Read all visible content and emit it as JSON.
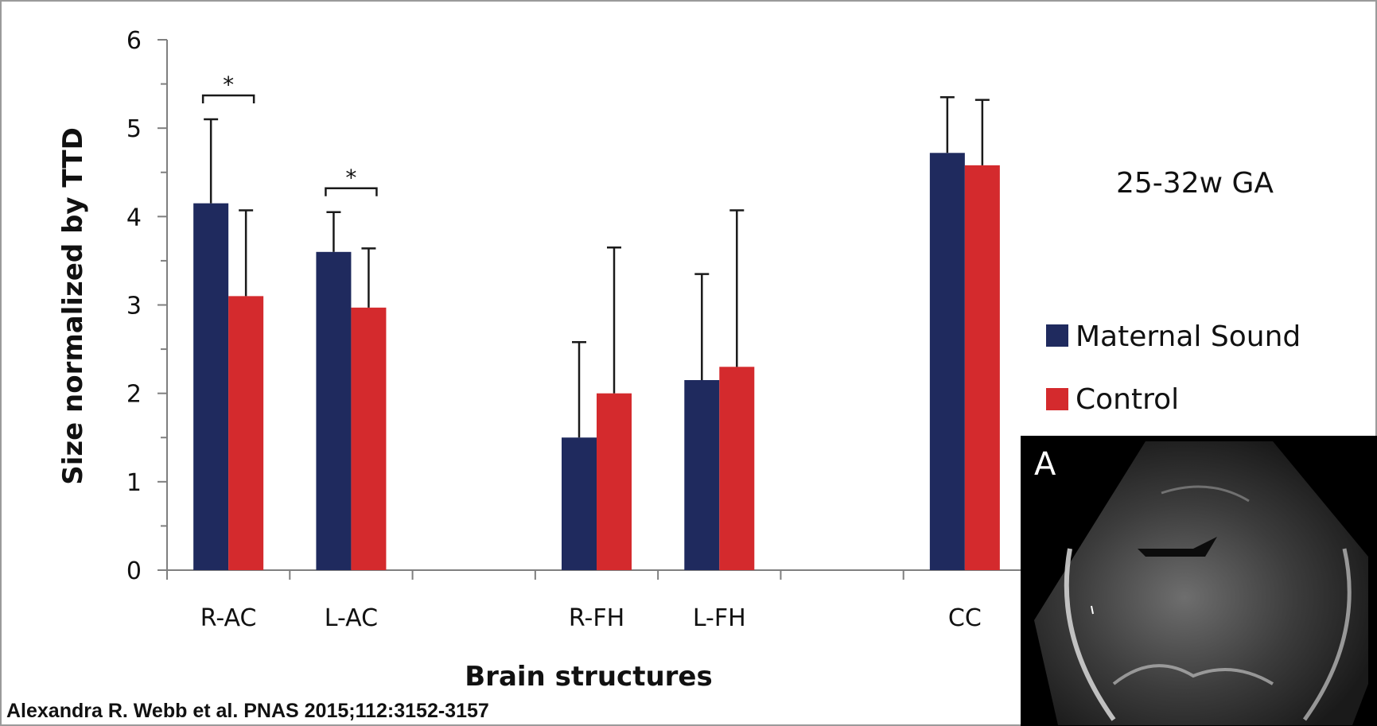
{
  "chart_data": {
    "type": "bar",
    "categories": [
      "R-AC",
      "L-AC",
      "",
      "R-FH",
      "L-FH",
      "",
      "CC"
    ],
    "series": [
      {
        "name": "Maternal Sound",
        "color": "#1f2a5e",
        "values": [
          4.15,
          3.6,
          null,
          1.5,
          2.15,
          null,
          4.72
        ],
        "errors": [
          0.95,
          0.45,
          null,
          1.08,
          1.2,
          null,
          0.63
        ]
      },
      {
        "name": "Control",
        "color": "#d42a2d",
        "values": [
          3.1,
          2.97,
          null,
          2.0,
          2.3,
          null,
          4.58
        ],
        "errors": [
          0.97,
          0.67,
          null,
          1.65,
          1.77,
          null,
          0.74
        ]
      }
    ],
    "xlabel": "Brain structures",
    "ylabel": "Size normalized by TTD",
    "ylim": [
      0,
      6
    ],
    "yticks": [
      "0",
      "1",
      "2",
      "3",
      "4",
      "5",
      "6"
    ],
    "annotation": "25-32w GA",
    "significance": [
      {
        "category": "R-AC",
        "label": "*"
      },
      {
        "category": "L-AC",
        "label": "*"
      }
    ],
    "legend_position": "right",
    "grid": false
  },
  "credit": "Alexandra R. Webb et al. PNAS 2015;112:3152-3157",
  "inset": {
    "label": "A",
    "icon": "ultrasound-image"
  }
}
